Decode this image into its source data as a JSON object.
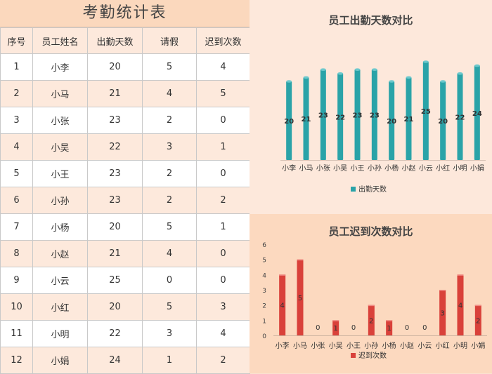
{
  "table": {
    "title": "考勤统计表",
    "headers": [
      "序号",
      "员工姓名",
      "出勤天数",
      "请假",
      "迟到次数"
    ],
    "rows": [
      [
        "1",
        "小李",
        "20",
        "5",
        "4"
      ],
      [
        "2",
        "小马",
        "21",
        "4",
        "5"
      ],
      [
        "3",
        "小张",
        "23",
        "2",
        "0"
      ],
      [
        "4",
        "小吴",
        "22",
        "3",
        "1"
      ],
      [
        "5",
        "小王",
        "23",
        "2",
        "0"
      ],
      [
        "6",
        "小孙",
        "23",
        "2",
        "2"
      ],
      [
        "7",
        "小杨",
        "20",
        "5",
        "1"
      ],
      [
        "8",
        "小赵",
        "21",
        "4",
        "0"
      ],
      [
        "9",
        "小云",
        "25",
        "0",
        "0"
      ],
      [
        "10",
        "小红",
        "20",
        "5",
        "3"
      ],
      [
        "11",
        "小明",
        "22",
        "3",
        "4"
      ],
      [
        "12",
        "小娟",
        "24",
        "1",
        "2"
      ]
    ]
  },
  "chart_data": [
    {
      "type": "bar",
      "title": "员工出勤天数对比",
      "categories": [
        "小李",
        "小马",
        "小张",
        "小吴",
        "小王",
        "小孙",
        "小杨",
        "小赵",
        "小云",
        "小红",
        "小明",
        "小娟"
      ],
      "series": [
        {
          "name": "出勤天数",
          "values": [
            20,
            21,
            23,
            22,
            23,
            23,
            20,
            21,
            25,
            20,
            22,
            24
          ]
        }
      ],
      "color": "#2aa3a8",
      "legend": "bottom",
      "grid": false,
      "value_axis_shown": false
    },
    {
      "type": "bar",
      "title": "员工迟到次数对比",
      "categories": [
        "小李",
        "小马",
        "小张",
        "小吴",
        "小王",
        "小孙",
        "小杨",
        "小赵",
        "小云",
        "小红",
        "小明",
        "小娟"
      ],
      "series": [
        {
          "name": "迟到次数",
          "values": [
            4,
            5,
            0,
            1,
            0,
            2,
            1,
            0,
            0,
            3,
            4,
            2
          ]
        }
      ],
      "color": "#d9413a",
      "ylim": [
        0,
        6
      ],
      "yticks": [
        "0",
        "1",
        "2",
        "3",
        "4",
        "5",
        "6"
      ],
      "legend": "bottom",
      "grid": false
    }
  ]
}
